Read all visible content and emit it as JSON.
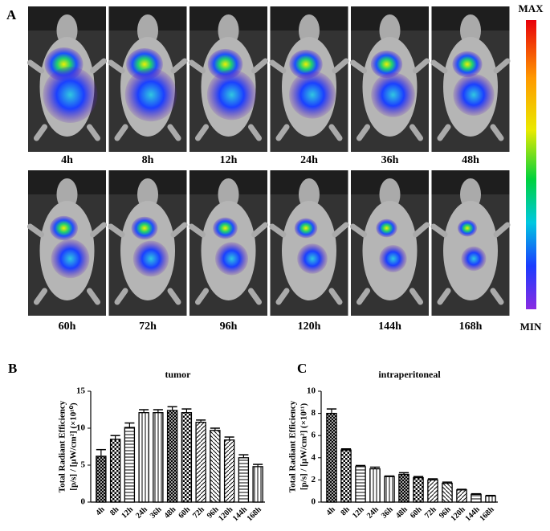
{
  "panel_a": {
    "label": "A",
    "time_labels": [
      "4h",
      "8h",
      "12h",
      "24h",
      "36h",
      "48h",
      "60h",
      "72h",
      "96h",
      "120h",
      "144h",
      "168h"
    ],
    "scale_max": "MAX",
    "scale_min": "MIN"
  },
  "chart_data": [
    {
      "type": "bar",
      "panel_label": "B",
      "title": "tumor",
      "y_label": [
        "Total Radiant Efficiency",
        "[p/s] / [μW/cm²] (×10¹⁰)"
      ],
      "categories": [
        "4h",
        "8h",
        "12h",
        "24h",
        "36h",
        "48h",
        "60h",
        "72h",
        "96h",
        "120h",
        "144h",
        "168h"
      ],
      "values": [
        6.2,
        8.5,
        10.1,
        12.1,
        12.1,
        12.4,
        12.1,
        10.8,
        9.7,
        8.4,
        6.0,
        4.8
      ],
      "errors": [
        0.9,
        0.5,
        0.6,
        0.4,
        0.4,
        0.5,
        0.5,
        0.3,
        0.3,
        0.4,
        0.4,
        0.3
      ],
      "color": "#000000",
      "ylim": [
        0,
        15
      ],
      "yticks": [
        0,
        5,
        10,
        15
      ],
      "grid": false
    },
    {
      "type": "bar",
      "panel_label": "C",
      "title": "intraperitoneal",
      "y_label": [
        "Total Radiant Efficiency",
        "[p/s] / [μW/cm²] (×10¹¹)"
      ],
      "categories": [
        "4h",
        "8h",
        "12h",
        "24h",
        "36h",
        "48h",
        "60h",
        "72h",
        "96h",
        "120h",
        "144h",
        "168h"
      ],
      "values": [
        8.0,
        4.7,
        3.2,
        3.0,
        2.3,
        2.5,
        2.2,
        2.0,
        1.7,
        1.1,
        0.7,
        0.55
      ],
      "errors": [
        0.4,
        0.1,
        0.1,
        0.15,
        0.05,
        0.15,
        0.1,
        0.1,
        0.1,
        0.05,
        0.05,
        0.05
      ],
      "color": "#000000",
      "ylim": [
        0,
        10
      ],
      "yticks": [
        0,
        2,
        4,
        6,
        8,
        10
      ],
      "grid": false
    }
  ]
}
